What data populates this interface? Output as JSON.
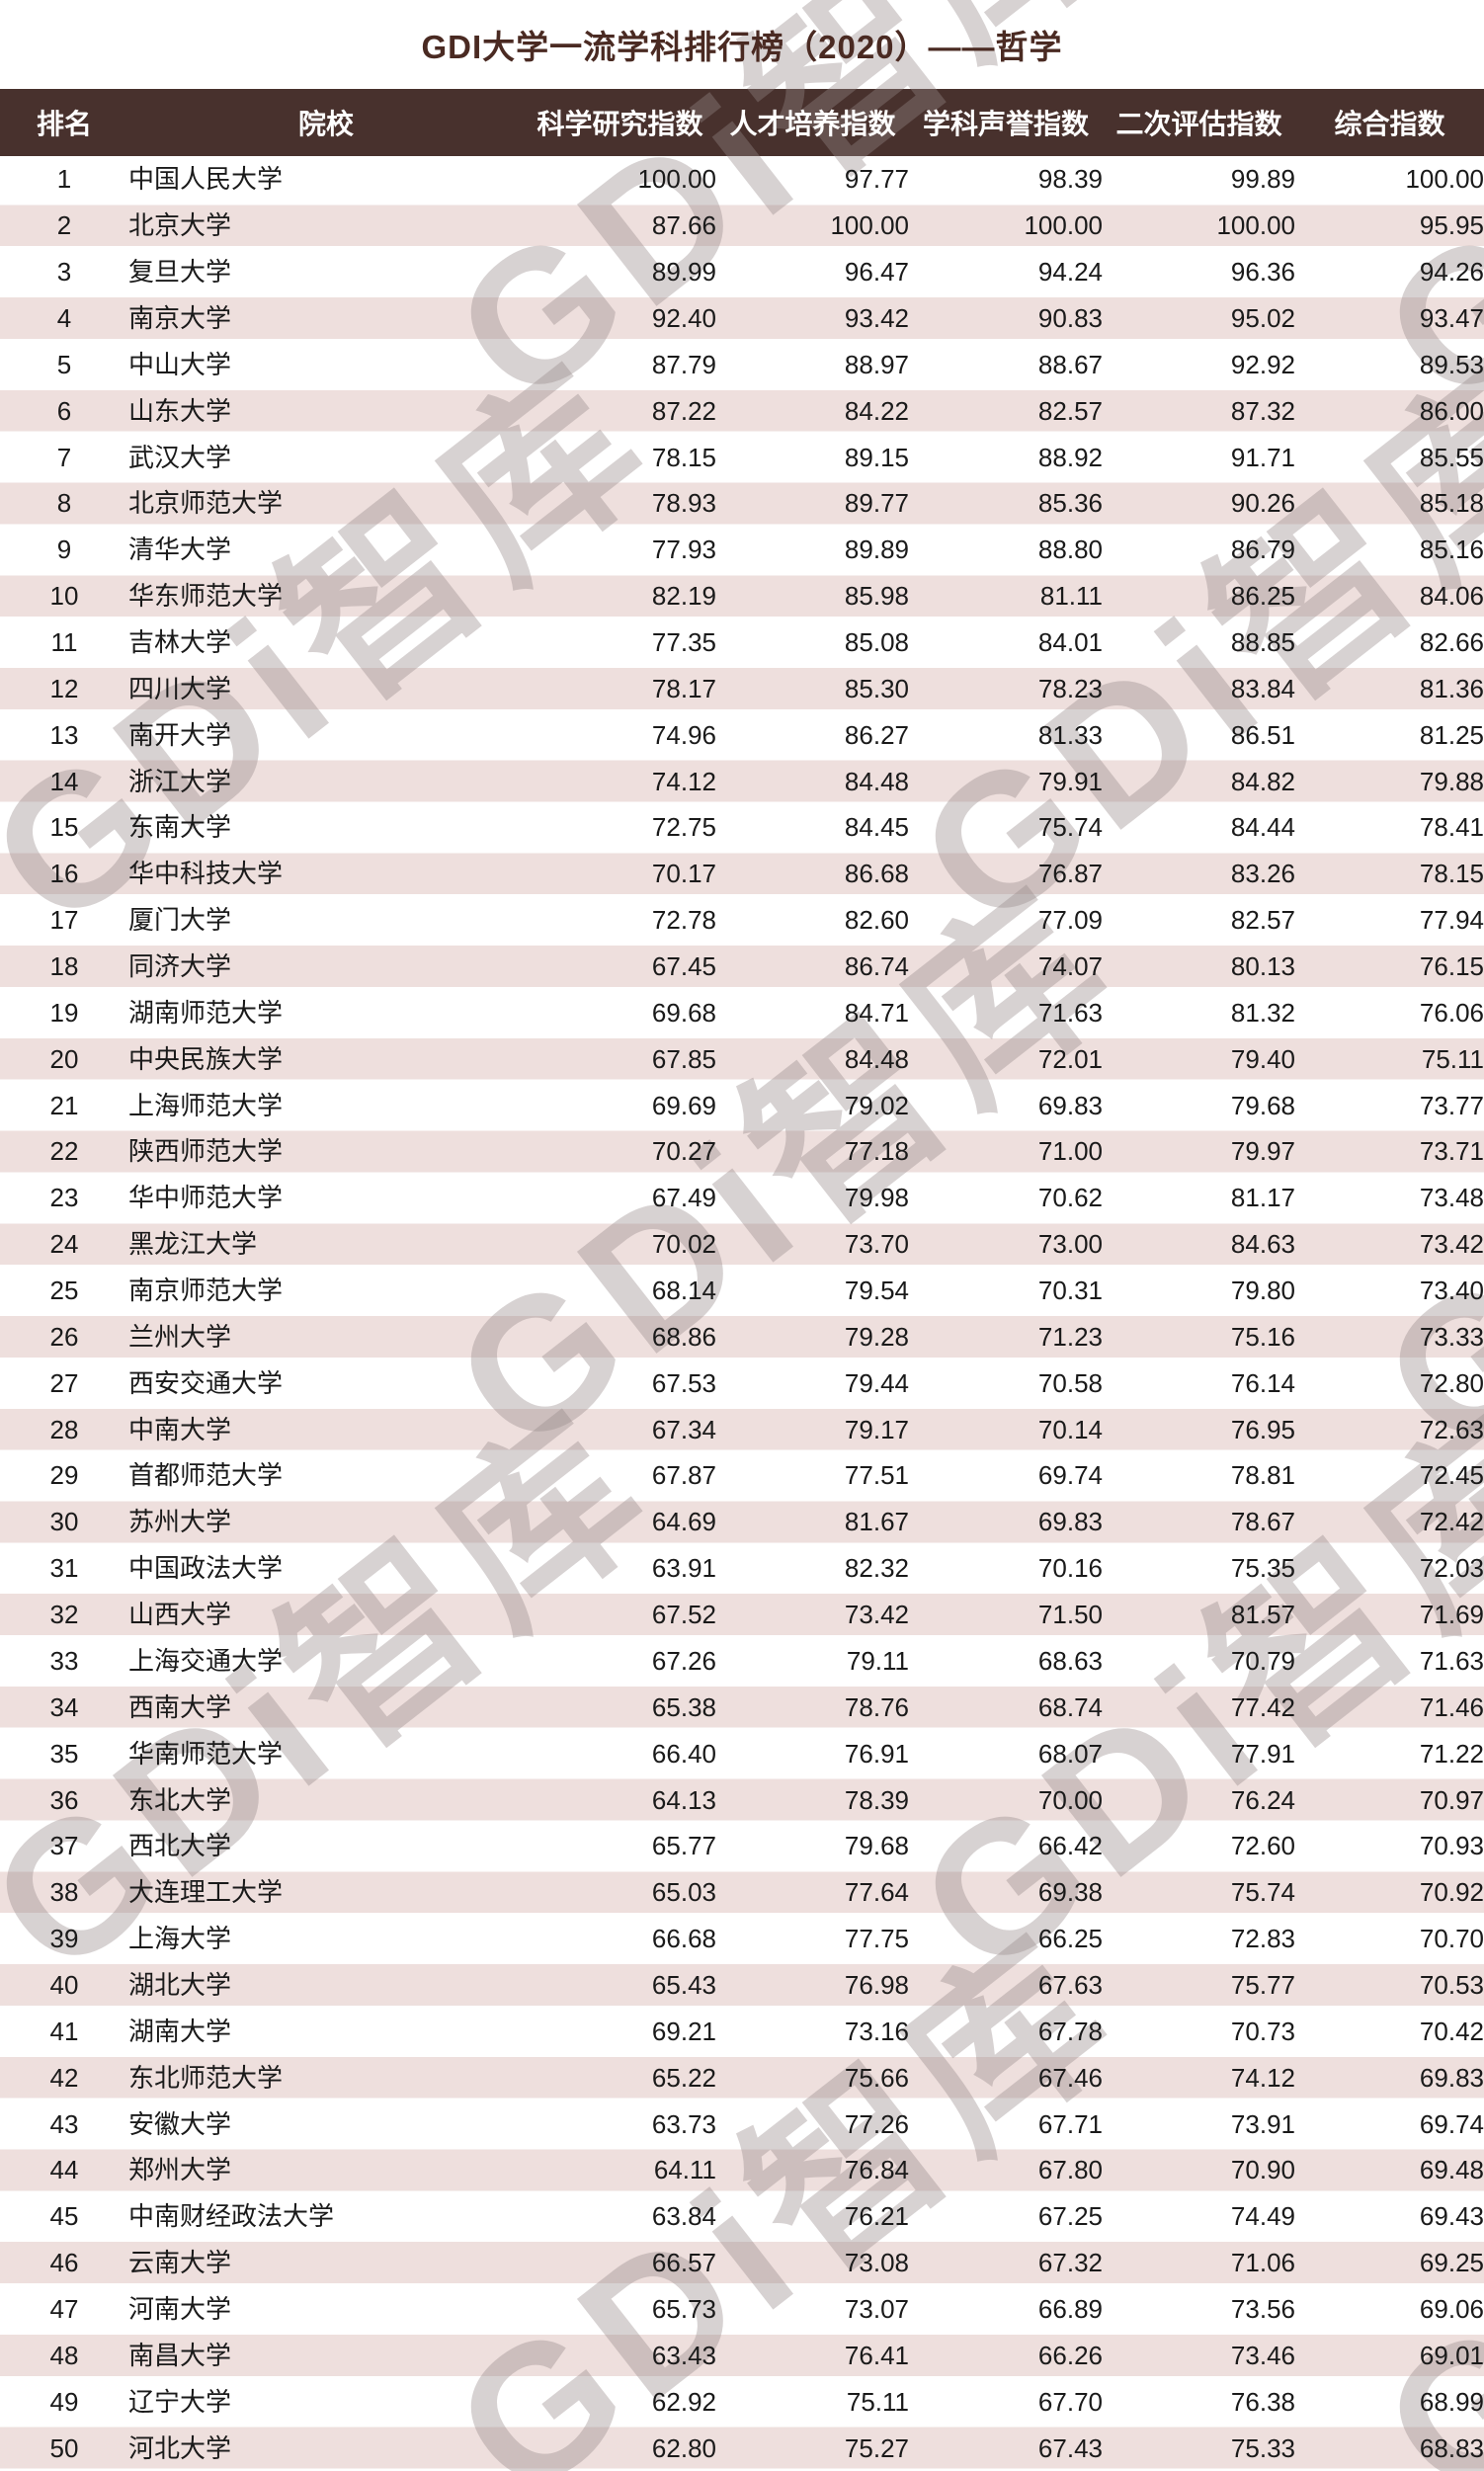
{
  "title": "GDI大学一流学科排行榜（2020）——哲学",
  "watermark": {
    "text": "GDi智库"
  },
  "colors": {
    "title_text": "#4a2a22",
    "header_bg": "#48312d",
    "header_text": "#ffffff",
    "row_alt_bg": "#eedfdd",
    "row_text": "#1a1a1a",
    "watermark": "rgba(150,138,138,0.38)"
  },
  "table": {
    "columns": [
      "排名",
      "院校",
      "科学研究指数",
      "人才培养指数",
      "学科声誉指数",
      "二次评估指数",
      "综合指数"
    ],
    "rows": [
      [
        "1",
        "中国人民大学",
        "100.00",
        "97.77",
        "98.39",
        "99.89",
        "100.00"
      ],
      [
        "2",
        "北京大学",
        "87.66",
        "100.00",
        "100.00",
        "100.00",
        "95.95"
      ],
      [
        "3",
        "复旦大学",
        "89.99",
        "96.47",
        "94.24",
        "96.36",
        "94.26"
      ],
      [
        "4",
        "南京大学",
        "92.40",
        "93.42",
        "90.83",
        "95.02",
        "93.47"
      ],
      [
        "5",
        "中山大学",
        "87.79",
        "88.97",
        "88.67",
        "92.92",
        "89.53"
      ],
      [
        "6",
        "山东大学",
        "87.22",
        "84.22",
        "82.57",
        "87.32",
        "86.00"
      ],
      [
        "7",
        "武汉大学",
        "78.15",
        "89.15",
        "88.92",
        "91.71",
        "85.55"
      ],
      [
        "8",
        "北京师范大学",
        "78.93",
        "89.77",
        "85.36",
        "90.26",
        "85.18"
      ],
      [
        "9",
        "清华大学",
        "77.93",
        "89.89",
        "88.80",
        "86.79",
        "85.16"
      ],
      [
        "10",
        "华东师范大学",
        "82.19",
        "85.98",
        "81.11",
        "86.25",
        "84.06"
      ],
      [
        "11",
        "吉林大学",
        "77.35",
        "85.08",
        "84.01",
        "88.85",
        "82.66"
      ],
      [
        "12",
        "四川大学",
        "78.17",
        "85.30",
        "78.23",
        "83.84",
        "81.36"
      ],
      [
        "13",
        "南开大学",
        "74.96",
        "86.27",
        "81.33",
        "86.51",
        "81.25"
      ],
      [
        "14",
        "浙江大学",
        "74.12",
        "84.48",
        "79.91",
        "84.82",
        "79.88"
      ],
      [
        "15",
        "东南大学",
        "72.75",
        "84.45",
        "75.74",
        "84.44",
        "78.41"
      ],
      [
        "16",
        "华中科技大学",
        "70.17",
        "86.68",
        "76.87",
        "83.26",
        "78.15"
      ],
      [
        "17",
        "厦门大学",
        "72.78",
        "82.60",
        "77.09",
        "82.57",
        "77.94"
      ],
      [
        "18",
        "同济大学",
        "67.45",
        "86.74",
        "74.07",
        "80.13",
        "76.15"
      ],
      [
        "19",
        "湖南师范大学",
        "69.68",
        "84.71",
        "71.63",
        "81.32",
        "76.06"
      ],
      [
        "20",
        "中央民族大学",
        "67.85",
        "84.48",
        "72.01",
        "79.40",
        "75.11"
      ],
      [
        "21",
        "上海师范大学",
        "69.69",
        "79.02",
        "69.83",
        "79.68",
        "73.77"
      ],
      [
        "22",
        "陕西师范大学",
        "70.27",
        "77.18",
        "71.00",
        "79.97",
        "73.71"
      ],
      [
        "23",
        "华中师范大学",
        "67.49",
        "79.98",
        "70.62",
        "81.17",
        "73.48"
      ],
      [
        "24",
        "黑龙江大学",
        "70.02",
        "73.70",
        "73.00",
        "84.63",
        "73.42"
      ],
      [
        "25",
        "南京师范大学",
        "68.14",
        "79.54",
        "70.31",
        "79.80",
        "73.40"
      ],
      [
        "26",
        "兰州大学",
        "68.86",
        "79.28",
        "71.23",
        "75.16",
        "73.33"
      ],
      [
        "27",
        "西安交通大学",
        "67.53",
        "79.44",
        "70.58",
        "76.14",
        "72.80"
      ],
      [
        "28",
        "中南大学",
        "67.34",
        "79.17",
        "70.14",
        "76.95",
        "72.63"
      ],
      [
        "29",
        "首都师范大学",
        "67.87",
        "77.51",
        "69.74",
        "78.81",
        "72.45"
      ],
      [
        "30",
        "苏州大学",
        "64.69",
        "81.67",
        "69.83",
        "78.67",
        "72.42"
      ],
      [
        "31",
        "中国政法大学",
        "63.91",
        "82.32",
        "70.16",
        "75.35",
        "72.03"
      ],
      [
        "32",
        "山西大学",
        "67.52",
        "73.42",
        "71.50",
        "81.57",
        "71.69"
      ],
      [
        "33",
        "上海交通大学",
        "67.26",
        "79.11",
        "68.63",
        "70.79",
        "71.63"
      ],
      [
        "34",
        "西南大学",
        "65.38",
        "78.76",
        "68.74",
        "77.42",
        "71.46"
      ],
      [
        "35",
        "华南师范大学",
        "66.40",
        "76.91",
        "68.07",
        "77.91",
        "71.22"
      ],
      [
        "36",
        "东北大学",
        "64.13",
        "78.39",
        "70.00",
        "76.24",
        "70.97"
      ],
      [
        "37",
        "西北大学",
        "65.77",
        "79.68",
        "66.42",
        "72.60",
        "70.93"
      ],
      [
        "38",
        "大连理工大学",
        "65.03",
        "77.64",
        "69.38",
        "75.74",
        "70.92"
      ],
      [
        "39",
        "上海大学",
        "66.68",
        "77.75",
        "66.25",
        "72.83",
        "70.70"
      ],
      [
        "40",
        "湖北大学",
        "65.43",
        "76.98",
        "67.63",
        "75.77",
        "70.53"
      ],
      [
        "41",
        "湖南大学",
        "69.21",
        "73.16",
        "67.78",
        "70.73",
        "70.42"
      ],
      [
        "42",
        "东北师范大学",
        "65.22",
        "75.66",
        "67.46",
        "74.12",
        "69.83"
      ],
      [
        "43",
        "安徽大学",
        "63.73",
        "77.26",
        "67.71",
        "73.91",
        "69.74"
      ],
      [
        "44",
        "郑州大学",
        "64.11",
        "76.84",
        "67.80",
        "70.90",
        "69.48"
      ],
      [
        "45",
        "中南财经政法大学",
        "63.84",
        "76.21",
        "67.25",
        "74.49",
        "69.43"
      ],
      [
        "46",
        "云南大学",
        "66.57",
        "73.08",
        "67.32",
        "71.06",
        "69.25"
      ],
      [
        "47",
        "河南大学",
        "65.73",
        "73.07",
        "66.89",
        "73.56",
        "69.06"
      ],
      [
        "48",
        "南昌大学",
        "63.43",
        "76.41",
        "66.26",
        "73.46",
        "69.01"
      ],
      [
        "49",
        "辽宁大学",
        "62.92",
        "75.11",
        "67.70",
        "76.38",
        "68.99"
      ],
      [
        "50",
        "河北大学",
        "62.80",
        "75.27",
        "67.43",
        "75.33",
        "68.83"
      ]
    ]
  }
}
